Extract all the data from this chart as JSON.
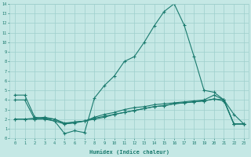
{
  "xlabel": "Humidex (Indice chaleur)",
  "color": "#1a7a6e",
  "bg_color": "#c5e8e5",
  "grid_color": "#9ecfcc",
  "ylim": [
    0,
    14
  ],
  "xlim": [
    -0.5,
    23.5
  ],
  "yticks": [
    0,
    1,
    2,
    3,
    4,
    5,
    6,
    7,
    8,
    9,
    10,
    11,
    12,
    13,
    14
  ],
  "xticks": [
    0,
    1,
    2,
    3,
    4,
    5,
    6,
    7,
    8,
    9,
    10,
    11,
    12,
    13,
    14,
    15,
    16,
    17,
    18,
    19,
    20,
    21,
    22,
    23
  ],
  "line_peak_x": [
    0,
    1,
    2,
    3,
    4,
    5,
    6,
    7,
    8,
    9,
    10,
    11,
    12,
    13,
    14,
    15,
    16,
    17,
    18,
    19,
    20,
    21,
    22,
    23
  ],
  "line_peak_y": [
    4.5,
    4.5,
    2.2,
    2.1,
    1.8,
    0.5,
    0.8,
    0.6,
    4.2,
    5.5,
    6.5,
    8.0,
    8.5,
    10.0,
    11.7,
    13.2,
    14.0,
    11.8,
    8.5,
    5.0,
    4.8,
    4.0,
    2.5,
    1.5
  ],
  "line_flat_x": [
    0,
    1,
    2,
    3,
    4,
    5,
    6,
    7,
    8,
    9,
    10,
    11,
    12,
    13,
    14,
    15,
    16,
    17,
    18,
    19,
    20,
    21,
    22,
    23
  ],
  "line_flat_y": [
    4.0,
    4.0,
    2.0,
    2.0,
    1.8,
    1.5,
    1.7,
    1.8,
    2.2,
    2.5,
    2.7,
    3.0,
    3.2,
    3.3,
    3.5,
    3.6,
    3.7,
    3.8,
    3.9,
    4.0,
    4.5,
    4.0,
    1.5,
    1.5
  ],
  "line_low1_x": [
    0,
    1,
    2,
    3,
    4,
    5,
    6,
    7,
    8,
    9,
    10,
    11,
    12,
    13,
    14,
    15,
    16,
    17,
    18,
    19,
    20,
    21,
    22,
    23
  ],
  "line_low1_y": [
    2.0,
    2.0,
    2.0,
    2.1,
    2.0,
    1.6,
    1.7,
    1.8,
    2.1,
    2.3,
    2.5,
    2.7,
    2.9,
    3.1,
    3.3,
    3.4,
    3.6,
    3.7,
    3.8,
    3.9,
    4.1,
    3.9,
    1.5,
    1.5
  ],
  "line_low2_x": [
    0,
    1,
    2,
    3,
    4,
    5,
    6,
    7,
    8,
    9,
    10,
    11,
    12,
    13,
    14,
    15,
    16,
    17,
    18,
    19,
    20,
    21,
    22,
    23
  ],
  "line_low2_y": [
    2.0,
    2.0,
    2.1,
    2.2,
    2.0,
    1.5,
    1.6,
    1.8,
    2.0,
    2.2,
    2.5,
    2.7,
    2.9,
    3.1,
    3.3,
    3.4,
    3.6,
    3.7,
    3.8,
    3.9,
    4.1,
    4.0,
    1.5,
    1.5
  ]
}
